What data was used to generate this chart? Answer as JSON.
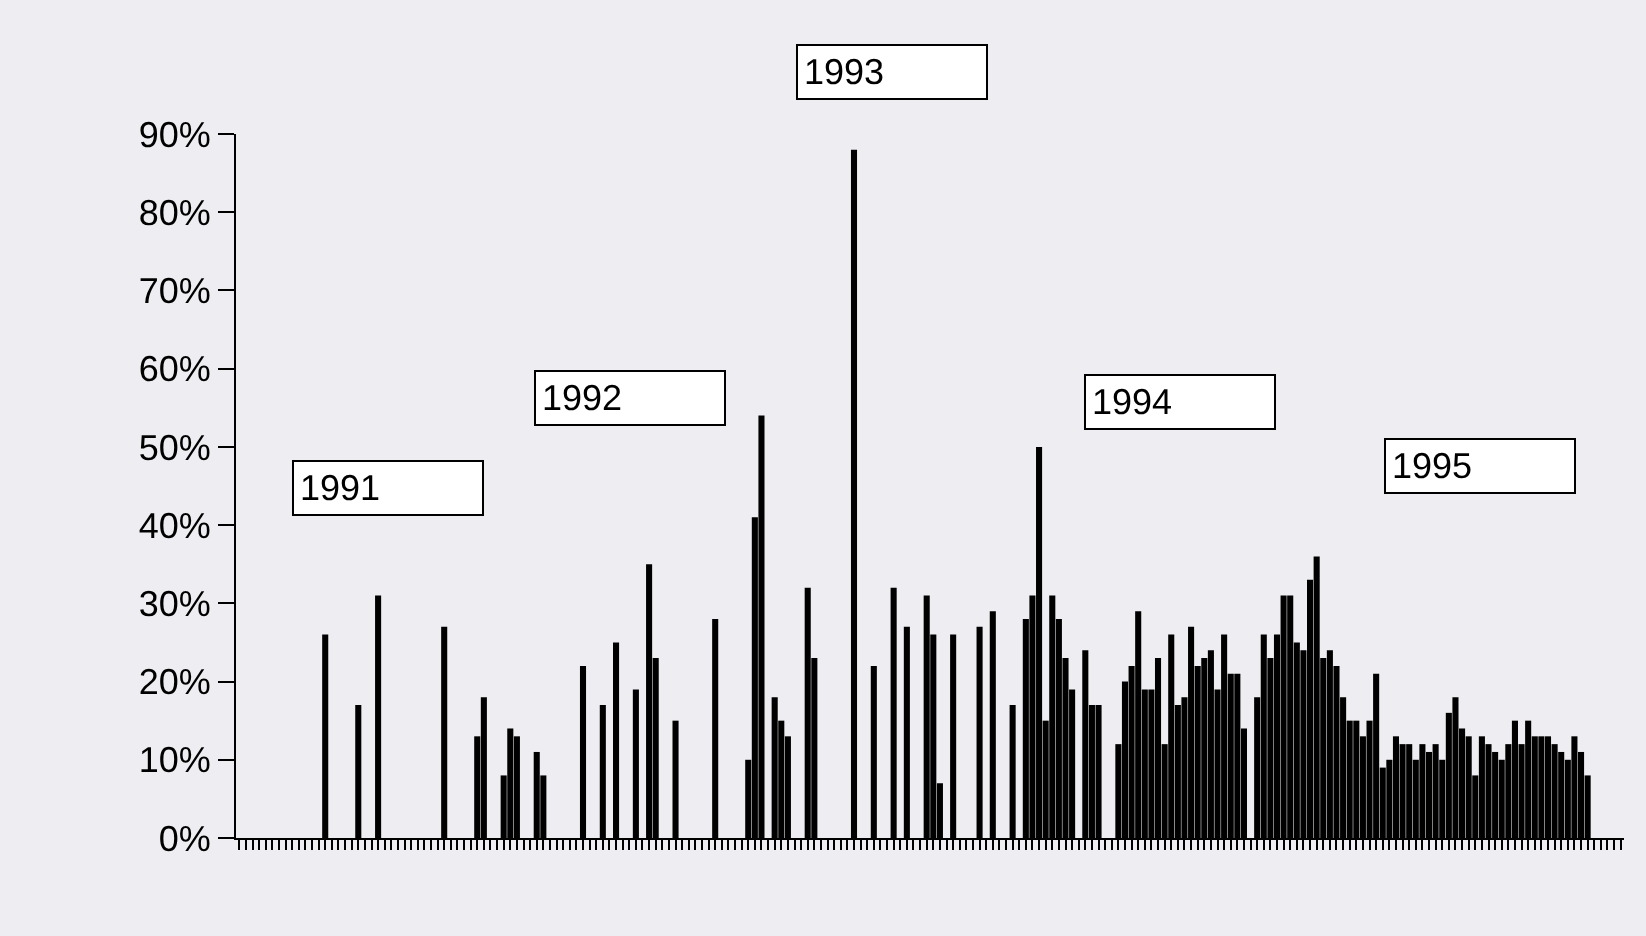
{
  "chart_data": {
    "type": "bar",
    "categories": [
      null,
      null,
      null,
      null,
      null,
      null,
      null,
      null,
      null,
      null,
      null,
      null,
      null,
      null,
      null,
      null,
      null,
      null,
      null,
      null,
      null,
      null,
      null,
      null,
      null,
      null,
      null,
      null,
      null,
      null,
      null,
      null,
      null,
      null,
      null,
      null,
      null,
      null,
      null,
      null,
      null,
      null,
      null,
      null,
      null,
      null,
      null,
      null,
      null,
      null,
      null,
      null,
      null,
      null,
      null,
      null,
      null,
      null,
      null,
      null,
      null,
      null,
      null,
      null,
      null,
      null,
      null,
      null,
      null,
      null,
      null,
      null,
      null,
      null,
      null,
      null,
      null,
      null,
      null,
      null,
      null,
      null,
      null,
      null,
      null,
      null,
      null,
      null,
      null,
      null,
      null,
      null,
      null,
      null,
      null,
      null,
      null,
      null,
      null,
      null,
      null,
      null,
      null,
      null,
      null,
      null,
      null,
      null,
      null,
      null,
      null,
      null,
      null,
      null,
      null,
      null,
      null,
      null,
      null,
      null,
      null,
      null,
      null,
      null,
      null,
      null,
      null,
      null,
      null,
      null,
      null,
      null,
      null,
      null,
      null,
      null,
      null,
      null,
      null,
      null,
      null,
      null,
      null,
      null,
      null,
      null,
      null,
      null,
      null,
      null,
      null,
      null,
      null,
      null,
      null,
      null,
      null,
      null,
      null,
      null,
      null,
      null,
      null,
      null,
      null,
      null,
      null,
      null,
      null,
      null,
      null,
      null,
      null,
      null,
      null,
      null,
      null,
      null,
      null,
      null,
      null,
      null,
      null,
      null,
      null,
      null,
      null,
      null,
      null,
      null,
      null,
      null,
      null,
      null,
      null,
      null,
      null,
      null,
      null,
      null,
      null,
      null,
      null,
      null,
      null,
      null,
      null,
      null,
      null,
      null
    ],
    "values": [
      0,
      0,
      0,
      0,
      0,
      0,
      0,
      0,
      0,
      0,
      0,
      0,
      0,
      26,
      0,
      0,
      0,
      0,
      17,
      0,
      0,
      31,
      0,
      0,
      0,
      0,
      0,
      0,
      0,
      0,
      0,
      27,
      0,
      0,
      0,
      0,
      13,
      18,
      0,
      0,
      8,
      14,
      13,
      0,
      0,
      11,
      8,
      0,
      0,
      0,
      0,
      0,
      22,
      0,
      0,
      17,
      0,
      25,
      0,
      0,
      19,
      0,
      35,
      23,
      0,
      0,
      15,
      0,
      0,
      0,
      0,
      0,
      28,
      0,
      0,
      0,
      0,
      10,
      41,
      54,
      0,
      18,
      15,
      13,
      0,
      0,
      32,
      23,
      0,
      0,
      0,
      0,
      0,
      88,
      0,
      0,
      22,
      0,
      0,
      32,
      0,
      27,
      0,
      0,
      31,
      26,
      7,
      0,
      26,
      0,
      0,
      0,
      27,
      0,
      29,
      0,
      0,
      17,
      0,
      28,
      31,
      50,
      15,
      31,
      28,
      23,
      19,
      0,
      24,
      17,
      17,
      0,
      0,
      12,
      20,
      22,
      29,
      19,
      19,
      23,
      12,
      26,
      17,
      18,
      27,
      22,
      23,
      24,
      19,
      26,
      21,
      21,
      14,
      0,
      18,
      26,
      23,
      26,
      31,
      31,
      25,
      24,
      33,
      36,
      23,
      24,
      22,
      18,
      15,
      15,
      13,
      15,
      21,
      9,
      10,
      13,
      12,
      12,
      10,
      12,
      11,
      12,
      10,
      16,
      18,
      14,
      13,
      8,
      13,
      12,
      11,
      10,
      12,
      15,
      12,
      15,
      13,
      13,
      13,
      12,
      11,
      10,
      13,
      11,
      8,
      0,
      0,
      0,
      0,
      0
    ],
    "color": "#000000",
    "ylim": [
      0,
      90
    ],
    "yticks": [
      {
        "value": 0,
        "label": "0%"
      },
      {
        "value": 10,
        "label": "10%"
      },
      {
        "value": 20,
        "label": "20%"
      },
      {
        "value": 30,
        "label": "30%"
      },
      {
        "value": 40,
        "label": "40%"
      },
      {
        "value": 50,
        "label": "50%"
      },
      {
        "value": 60,
        "label": "60%"
      },
      {
        "value": 70,
        "label": "70%"
      },
      {
        "value": 80,
        "label": "80%"
      },
      {
        "value": 90,
        "label": "90%"
      }
    ],
    "tick_labels": "y",
    "grid": false,
    "legend": false,
    "annotations": [
      "1991",
      "1992",
      "1993",
      "1994",
      "1995"
    ]
  }
}
